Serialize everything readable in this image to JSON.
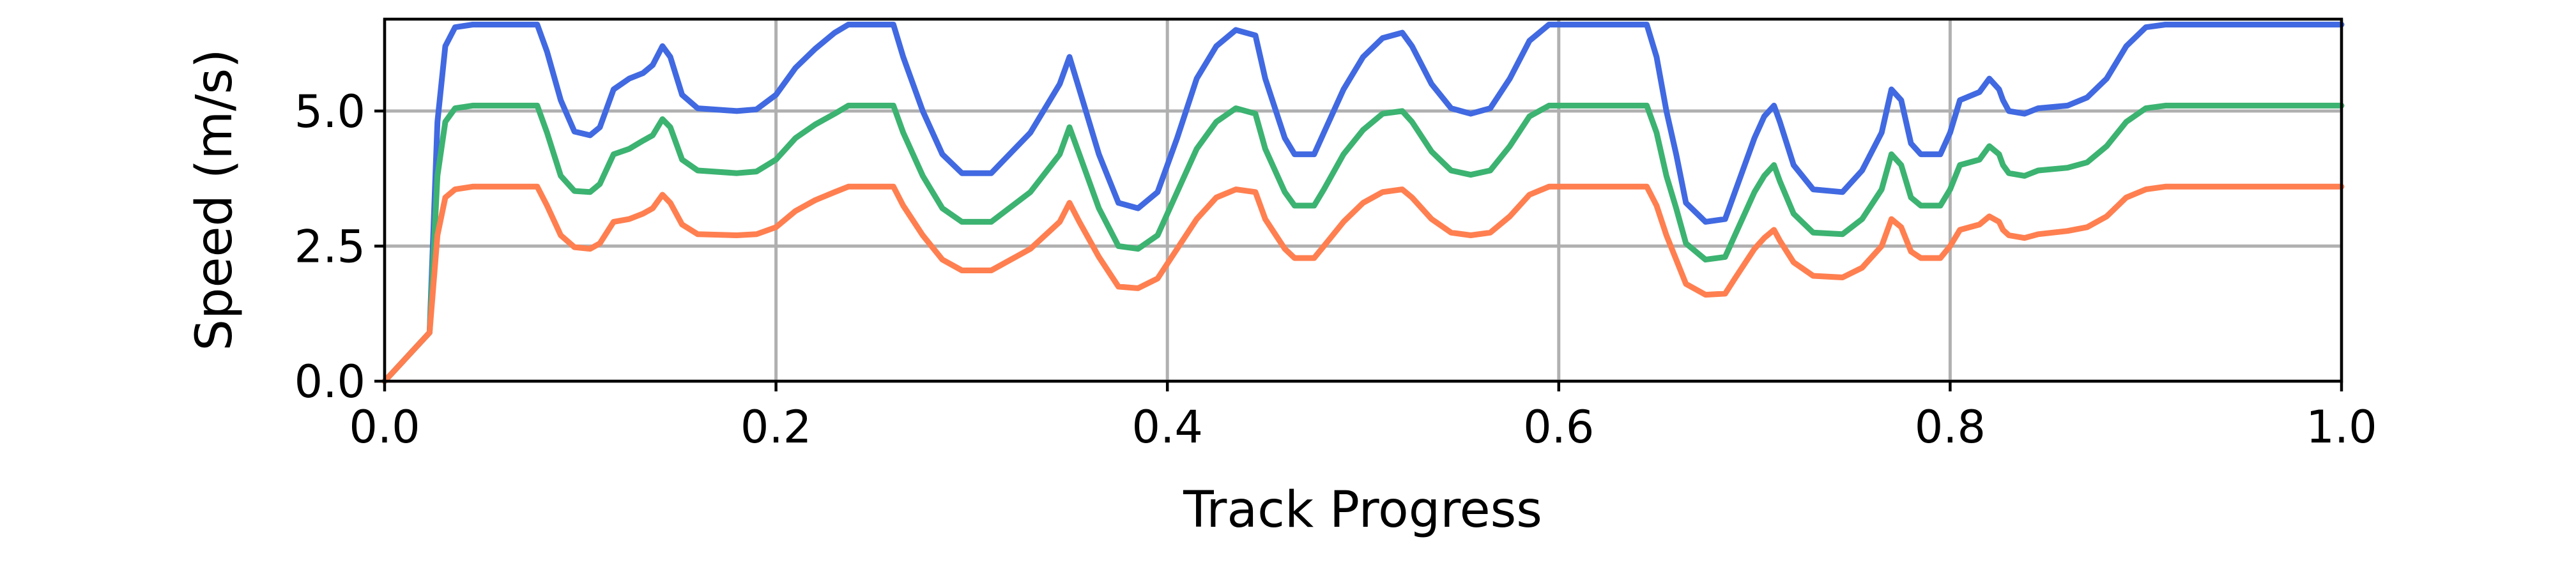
{
  "chart_data": {
    "type": "line",
    "title": "",
    "xlabel": "Track Progress",
    "ylabel": "Speed (m/s)",
    "xlim": [
      0.0,
      1.0
    ],
    "ylim": [
      0.0,
      6.7
    ],
    "xticks": [
      "0.0",
      "0.2",
      "0.4",
      "0.6",
      "0.8",
      "1.0"
    ],
    "xtick_values": [
      0.0,
      0.2,
      0.4,
      0.6,
      0.8,
      1.0
    ],
    "yticks": [
      "0.0",
      "2.5",
      "5.0"
    ],
    "ytick_values": [
      0.0,
      2.5,
      5.0
    ],
    "grid": true,
    "legend": "none",
    "series": [
      {
        "color": "#4169e1",
        "points": [
          [
            0.0,
            0.0
          ],
          [
            0.023,
            0.9
          ],
          [
            0.027,
            4.8
          ],
          [
            0.031,
            6.2
          ],
          [
            0.036,
            6.55
          ],
          [
            0.045,
            6.6
          ],
          [
            0.078,
            6.6
          ],
          [
            0.083,
            6.1
          ],
          [
            0.09,
            5.2
          ],
          [
            0.097,
            4.62
          ],
          [
            0.105,
            4.55
          ],
          [
            0.11,
            4.7
          ],
          [
            0.117,
            5.4
          ],
          [
            0.125,
            5.6
          ],
          [
            0.132,
            5.7
          ],
          [
            0.137,
            5.85
          ],
          [
            0.142,
            6.2
          ],
          [
            0.146,
            6.0
          ],
          [
            0.152,
            5.3
          ],
          [
            0.16,
            5.05
          ],
          [
            0.18,
            5.0
          ],
          [
            0.19,
            5.03
          ],
          [
            0.2,
            5.3
          ],
          [
            0.21,
            5.8
          ],
          [
            0.22,
            6.15
          ],
          [
            0.23,
            6.45
          ],
          [
            0.237,
            6.6
          ],
          [
            0.26,
            6.6
          ],
          [
            0.265,
            6.0
          ],
          [
            0.275,
            5.0
          ],
          [
            0.285,
            4.2
          ],
          [
            0.295,
            3.85
          ],
          [
            0.31,
            3.85
          ],
          [
            0.33,
            4.6
          ],
          [
            0.345,
            5.5
          ],
          [
            0.35,
            6.0
          ],
          [
            0.355,
            5.4
          ],
          [
            0.365,
            4.2
          ],
          [
            0.375,
            3.3
          ],
          [
            0.385,
            3.2
          ],
          [
            0.395,
            3.5
          ],
          [
            0.405,
            4.5
          ],
          [
            0.415,
            5.6
          ],
          [
            0.425,
            6.2
          ],
          [
            0.435,
            6.5
          ],
          [
            0.445,
            6.4
          ],
          [
            0.45,
            5.6
          ],
          [
            0.46,
            4.5
          ],
          [
            0.465,
            4.2
          ],
          [
            0.475,
            4.2
          ],
          [
            0.48,
            4.6
          ],
          [
            0.49,
            5.4
          ],
          [
            0.5,
            6.0
          ],
          [
            0.51,
            6.35
          ],
          [
            0.52,
            6.45
          ],
          [
            0.525,
            6.2
          ],
          [
            0.535,
            5.5
          ],
          [
            0.545,
            5.05
          ],
          [
            0.555,
            4.95
          ],
          [
            0.565,
            5.05
          ],
          [
            0.575,
            5.6
          ],
          [
            0.585,
            6.3
          ],
          [
            0.595,
            6.6
          ],
          [
            0.645,
            6.6
          ],
          [
            0.65,
            6.0
          ],
          [
            0.655,
            5.0
          ],
          [
            0.66,
            4.2
          ],
          [
            0.665,
            3.3
          ],
          [
            0.675,
            2.95
          ],
          [
            0.685,
            3.0
          ],
          [
            0.69,
            3.5
          ],
          [
            0.7,
            4.5
          ],
          [
            0.705,
            4.9
          ],
          [
            0.71,
            5.1
          ],
          [
            0.713,
            4.8
          ],
          [
            0.72,
            4.0
          ],
          [
            0.73,
            3.55
          ],
          [
            0.745,
            3.5
          ],
          [
            0.755,
            3.9
          ],
          [
            0.765,
            4.6
          ],
          [
            0.77,
            5.4
          ],
          [
            0.775,
            5.2
          ],
          [
            0.78,
            4.4
          ],
          [
            0.785,
            4.2
          ],
          [
            0.795,
            4.2
          ],
          [
            0.8,
            4.6
          ],
          [
            0.805,
            5.2
          ],
          [
            0.815,
            5.35
          ],
          [
            0.82,
            5.6
          ],
          [
            0.825,
            5.4
          ],
          [
            0.827,
            5.2
          ],
          [
            0.83,
            5.0
          ],
          [
            0.838,
            4.95
          ],
          [
            0.845,
            5.05
          ],
          [
            0.86,
            5.1
          ],
          [
            0.87,
            5.25
          ],
          [
            0.88,
            5.6
          ],
          [
            0.89,
            6.2
          ],
          [
            0.9,
            6.55
          ],
          [
            0.91,
            6.6
          ],
          [
            1.0,
            6.6
          ]
        ]
      },
      {
        "color": "#3cb371",
        "points": [
          [
            0.0,
            0.0
          ],
          [
            0.023,
            0.9
          ],
          [
            0.027,
            3.8
          ],
          [
            0.031,
            4.8
          ],
          [
            0.036,
            5.05
          ],
          [
            0.045,
            5.1
          ],
          [
            0.078,
            5.1
          ],
          [
            0.083,
            4.6
          ],
          [
            0.09,
            3.8
          ],
          [
            0.097,
            3.52
          ],
          [
            0.105,
            3.5
          ],
          [
            0.11,
            3.65
          ],
          [
            0.117,
            4.2
          ],
          [
            0.125,
            4.3
          ],
          [
            0.132,
            4.45
          ],
          [
            0.137,
            4.55
          ],
          [
            0.142,
            4.85
          ],
          [
            0.146,
            4.7
          ],
          [
            0.152,
            4.1
          ],
          [
            0.16,
            3.9
          ],
          [
            0.18,
            3.85
          ],
          [
            0.19,
            3.88
          ],
          [
            0.2,
            4.1
          ],
          [
            0.21,
            4.5
          ],
          [
            0.22,
            4.75
          ],
          [
            0.23,
            4.95
          ],
          [
            0.237,
            5.1
          ],
          [
            0.26,
            5.1
          ],
          [
            0.265,
            4.6
          ],
          [
            0.275,
            3.8
          ],
          [
            0.285,
            3.2
          ],
          [
            0.295,
            2.95
          ],
          [
            0.31,
            2.95
          ],
          [
            0.33,
            3.5
          ],
          [
            0.345,
            4.2
          ],
          [
            0.35,
            4.7
          ],
          [
            0.355,
            4.2
          ],
          [
            0.365,
            3.2
          ],
          [
            0.375,
            2.5
          ],
          [
            0.385,
            2.45
          ],
          [
            0.395,
            2.7
          ],
          [
            0.405,
            3.5
          ],
          [
            0.415,
            4.3
          ],
          [
            0.425,
            4.8
          ],
          [
            0.435,
            5.05
          ],
          [
            0.445,
            4.95
          ],
          [
            0.45,
            4.3
          ],
          [
            0.46,
            3.5
          ],
          [
            0.465,
            3.25
          ],
          [
            0.475,
            3.25
          ],
          [
            0.48,
            3.55
          ],
          [
            0.49,
            4.2
          ],
          [
            0.5,
            4.65
          ],
          [
            0.51,
            4.95
          ],
          [
            0.52,
            5.0
          ],
          [
            0.525,
            4.8
          ],
          [
            0.535,
            4.25
          ],
          [
            0.545,
            3.9
          ],
          [
            0.555,
            3.82
          ],
          [
            0.565,
            3.9
          ],
          [
            0.575,
            4.35
          ],
          [
            0.585,
            4.9
          ],
          [
            0.595,
            5.1
          ],
          [
            0.645,
            5.1
          ],
          [
            0.65,
            4.6
          ],
          [
            0.655,
            3.8
          ],
          [
            0.66,
            3.2
          ],
          [
            0.665,
            2.55
          ],
          [
            0.675,
            2.25
          ],
          [
            0.685,
            2.3
          ],
          [
            0.69,
            2.7
          ],
          [
            0.7,
            3.5
          ],
          [
            0.705,
            3.8
          ],
          [
            0.71,
            4.0
          ],
          [
            0.713,
            3.7
          ],
          [
            0.72,
            3.1
          ],
          [
            0.73,
            2.75
          ],
          [
            0.745,
            2.72
          ],
          [
            0.755,
            3.0
          ],
          [
            0.765,
            3.55
          ],
          [
            0.77,
            4.2
          ],
          [
            0.775,
            4.0
          ],
          [
            0.78,
            3.4
          ],
          [
            0.785,
            3.25
          ],
          [
            0.795,
            3.25
          ],
          [
            0.8,
            3.55
          ],
          [
            0.805,
            4.0
          ],
          [
            0.815,
            4.1
          ],
          [
            0.82,
            4.35
          ],
          [
            0.825,
            4.2
          ],
          [
            0.827,
            4.0
          ],
          [
            0.83,
            3.85
          ],
          [
            0.838,
            3.8
          ],
          [
            0.845,
            3.9
          ],
          [
            0.86,
            3.95
          ],
          [
            0.87,
            4.05
          ],
          [
            0.88,
            4.35
          ],
          [
            0.89,
            4.8
          ],
          [
            0.9,
            5.05
          ],
          [
            0.91,
            5.1
          ],
          [
            1.0,
            5.1
          ]
        ]
      },
      {
        "color": "#ff7f50",
        "points": [
          [
            0.0,
            0.0
          ],
          [
            0.023,
            0.9
          ],
          [
            0.027,
            2.7
          ],
          [
            0.031,
            3.4
          ],
          [
            0.036,
            3.55
          ],
          [
            0.045,
            3.6
          ],
          [
            0.078,
            3.6
          ],
          [
            0.083,
            3.25
          ],
          [
            0.09,
            2.7
          ],
          [
            0.097,
            2.48
          ],
          [
            0.105,
            2.45
          ],
          [
            0.11,
            2.55
          ],
          [
            0.117,
            2.95
          ],
          [
            0.125,
            3.0
          ],
          [
            0.132,
            3.1
          ],
          [
            0.137,
            3.2
          ],
          [
            0.142,
            3.45
          ],
          [
            0.146,
            3.3
          ],
          [
            0.152,
            2.9
          ],
          [
            0.16,
            2.72
          ],
          [
            0.18,
            2.7
          ],
          [
            0.19,
            2.72
          ],
          [
            0.2,
            2.85
          ],
          [
            0.21,
            3.15
          ],
          [
            0.22,
            3.35
          ],
          [
            0.23,
            3.5
          ],
          [
            0.237,
            3.6
          ],
          [
            0.26,
            3.6
          ],
          [
            0.265,
            3.25
          ],
          [
            0.275,
            2.7
          ],
          [
            0.285,
            2.25
          ],
          [
            0.295,
            2.05
          ],
          [
            0.31,
            2.05
          ],
          [
            0.33,
            2.45
          ],
          [
            0.345,
            2.95
          ],
          [
            0.35,
            3.3
          ],
          [
            0.355,
            2.95
          ],
          [
            0.365,
            2.3
          ],
          [
            0.375,
            1.75
          ],
          [
            0.385,
            1.72
          ],
          [
            0.395,
            1.9
          ],
          [
            0.405,
            2.45
          ],
          [
            0.415,
            3.0
          ],
          [
            0.425,
            3.4
          ],
          [
            0.435,
            3.55
          ],
          [
            0.445,
            3.5
          ],
          [
            0.45,
            3.0
          ],
          [
            0.46,
            2.45
          ],
          [
            0.465,
            2.28
          ],
          [
            0.475,
            2.28
          ],
          [
            0.48,
            2.5
          ],
          [
            0.49,
            2.95
          ],
          [
            0.5,
            3.3
          ],
          [
            0.51,
            3.5
          ],
          [
            0.52,
            3.55
          ],
          [
            0.525,
            3.4
          ],
          [
            0.535,
            3.0
          ],
          [
            0.545,
            2.75
          ],
          [
            0.555,
            2.7
          ],
          [
            0.565,
            2.75
          ],
          [
            0.575,
            3.05
          ],
          [
            0.585,
            3.45
          ],
          [
            0.595,
            3.6
          ],
          [
            0.645,
            3.6
          ],
          [
            0.65,
            3.25
          ],
          [
            0.655,
            2.7
          ],
          [
            0.66,
            2.25
          ],
          [
            0.665,
            1.8
          ],
          [
            0.675,
            1.6
          ],
          [
            0.685,
            1.62
          ],
          [
            0.69,
            1.9
          ],
          [
            0.7,
            2.45
          ],
          [
            0.705,
            2.65
          ],
          [
            0.71,
            2.8
          ],
          [
            0.713,
            2.6
          ],
          [
            0.72,
            2.2
          ],
          [
            0.73,
            1.95
          ],
          [
            0.745,
            1.92
          ],
          [
            0.755,
            2.1
          ],
          [
            0.765,
            2.5
          ],
          [
            0.77,
            3.0
          ],
          [
            0.775,
            2.85
          ],
          [
            0.78,
            2.4
          ],
          [
            0.785,
            2.28
          ],
          [
            0.795,
            2.28
          ],
          [
            0.8,
            2.5
          ],
          [
            0.805,
            2.8
          ],
          [
            0.815,
            2.9
          ],
          [
            0.82,
            3.05
          ],
          [
            0.825,
            2.95
          ],
          [
            0.827,
            2.8
          ],
          [
            0.83,
            2.7
          ],
          [
            0.838,
            2.65
          ],
          [
            0.845,
            2.72
          ],
          [
            0.86,
            2.78
          ],
          [
            0.87,
            2.85
          ],
          [
            0.88,
            3.05
          ],
          [
            0.89,
            3.4
          ],
          [
            0.9,
            3.55
          ],
          [
            0.91,
            3.6
          ],
          [
            1.0,
            3.6
          ]
        ]
      }
    ]
  }
}
